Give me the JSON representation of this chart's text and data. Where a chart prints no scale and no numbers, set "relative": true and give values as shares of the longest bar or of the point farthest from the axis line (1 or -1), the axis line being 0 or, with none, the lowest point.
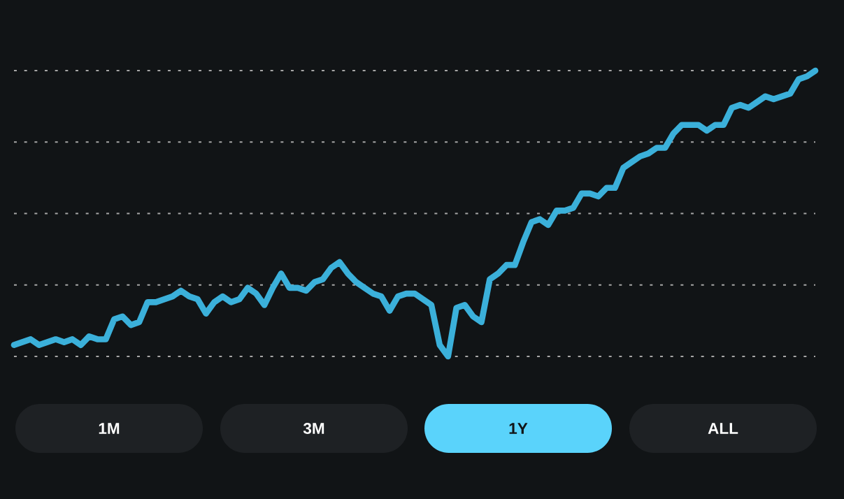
{
  "chart_data": {
    "type": "line",
    "relative": true,
    "grid": "y",
    "color": "#3bb0da",
    "line_style": "solid",
    "categories": [
      null,
      null,
      null,
      null,
      null,
      null,
      null,
      null,
      null,
      null,
      null,
      null,
      null,
      null,
      null,
      null,
      null,
      null,
      null,
      null,
      null,
      null,
      null,
      null,
      null,
      null,
      null,
      null,
      null,
      null,
      null,
      null,
      null,
      null,
      null,
      null,
      null,
      null,
      null,
      null,
      null,
      null,
      null,
      null,
      null,
      null,
      null,
      null,
      null,
      null,
      null,
      null,
      null,
      null,
      null,
      null,
      null,
      null,
      null,
      null,
      null,
      null,
      null,
      null,
      null,
      null,
      null,
      null,
      null,
      null,
      null,
      null,
      null,
      null,
      null,
      null,
      null,
      null,
      null,
      null,
      null,
      null,
      null,
      null,
      null,
      null,
      null,
      null,
      null,
      null,
      null,
      null,
      null,
      null,
      null,
      null,
      null
    ],
    "values": [
      0.04,
      0.05,
      0.06,
      0.04,
      0.05,
      0.06,
      0.05,
      0.06,
      0.04,
      0.07,
      0.06,
      0.06,
      0.13,
      0.14,
      0.11,
      0.12,
      0.19,
      0.19,
      0.2,
      0.21,
      0.23,
      0.21,
      0.2,
      0.15,
      0.19,
      0.21,
      0.19,
      0.2,
      0.24,
      0.22,
      0.18,
      0.24,
      0.29,
      0.24,
      0.24,
      0.23,
      0.26,
      0.27,
      0.31,
      0.33,
      0.29,
      0.26,
      0.24,
      0.22,
      0.21,
      0.16,
      0.21,
      0.22,
      0.22,
      0.2,
      0.18,
      0.04,
      0,
      0.17,
      0.18,
      0.14,
      0.12,
      0.27,
      0.29,
      0.32,
      0.32,
      0.4,
      0.47,
      0.48,
      0.46,
      0.51,
      0.51,
      0.52,
      0.57,
      0.57,
      0.56,
      0.59,
      0.59,
      0.66,
      0.68,
      0.7,
      0.71,
      0.73,
      0.73,
      0.78,
      0.81,
      0.81,
      0.81,
      0.79,
      0.81,
      0.81,
      0.87,
      0.88,
      0.87,
      0.89,
      0.91,
      0.9,
      0.91,
      0.92,
      0.97,
      0.98,
      1
    ],
    "annotations": [
      "1M",
      "3M",
      "1Y",
      "ALL"
    ]
  }
}
